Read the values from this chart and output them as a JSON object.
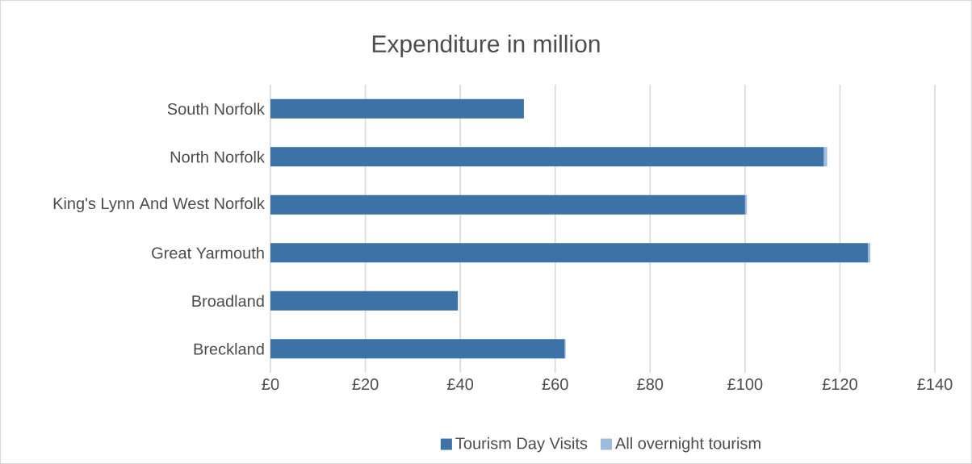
{
  "chart_data": {
    "type": "bar",
    "orientation": "horizontal",
    "stacked": true,
    "title": "Expenditure in million",
    "categories": [
      "South Norfolk",
      "North Norfolk",
      "King's Lynn And West Norfolk",
      "Great Yarmouth",
      "Broadland",
      "Breckland"
    ],
    "series": [
      {
        "name": "Tourism Day Visits",
        "color": "#3c72a6",
        "values": [
          53.4,
          116.6,
          100.0,
          125.9,
          39.5,
          62.0
        ]
      },
      {
        "name": "All overnight tourism",
        "color": "#9dbbdd",
        "values": [
          0,
          0.7,
          0.4,
          0.5,
          0,
          0.2
        ]
      }
    ],
    "xlim": [
      0,
      140
    ],
    "xticks": [
      {
        "value": 0,
        "label": "£0"
      },
      {
        "value": 20,
        "label": "£20"
      },
      {
        "value": 40,
        "label": "£40"
      },
      {
        "value": 60,
        "label": "£60"
      },
      {
        "value": 80,
        "label": "£80"
      },
      {
        "value": 100,
        "label": "£100"
      },
      {
        "value": 120,
        "label": "£120"
      },
      {
        "value": 140,
        "label": "£140"
      }
    ],
    "grid": "x",
    "legend": "bottom"
  }
}
